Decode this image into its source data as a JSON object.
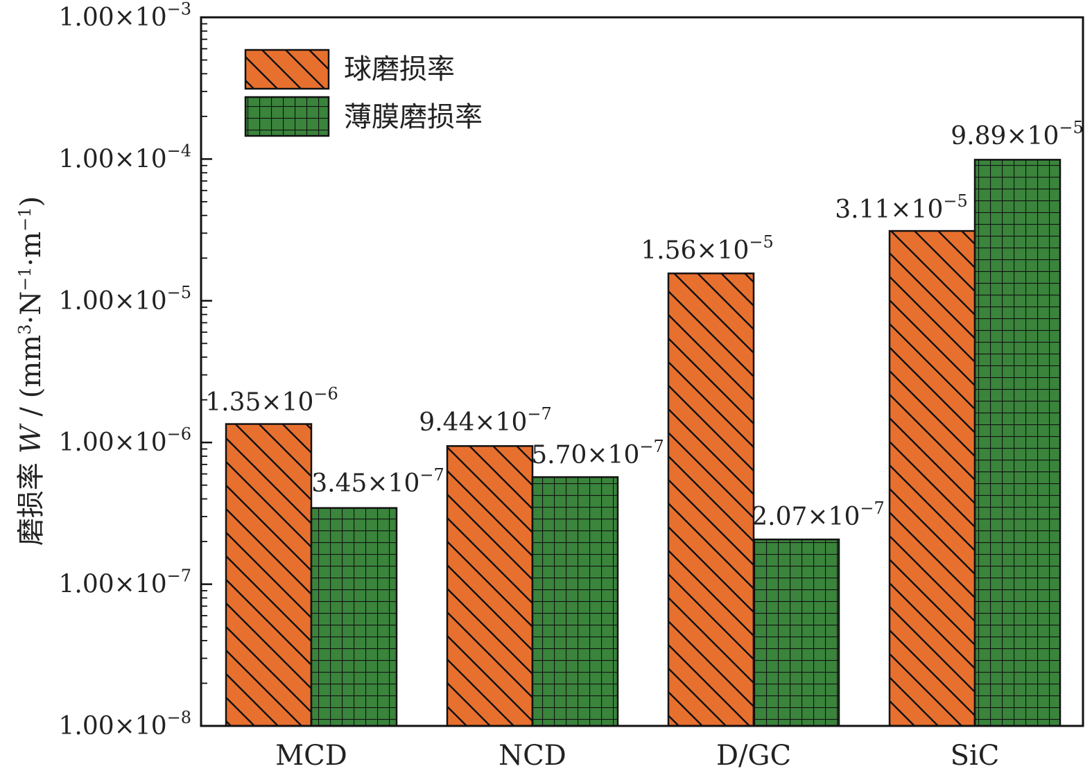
{
  "chart_data": {
    "type": "bar",
    "scale": "log",
    "ylim": [
      1e-08,
      0.001
    ],
    "ylabel": {
      "prefix": "磨损率 ",
      "var": "W",
      "units": " / (mm",
      "sup1": "3",
      "mid1": "·N",
      "sup2": "−1",
      "mid2": "·m",
      "sup3": "−1",
      "end": ")"
    },
    "yticks": [
      {
        "mant": "1.00×10",
        "exp": "−8",
        "value": 1e-08
      },
      {
        "mant": "1.00×10",
        "exp": "−7",
        "value": 1e-07
      },
      {
        "mant": "1.00×10",
        "exp": "−6",
        "value": 1e-06
      },
      {
        "mant": "1.00×10",
        "exp": "−5",
        "value": 1e-05
      },
      {
        "mant": "1.00×10",
        "exp": "−4",
        "value": 0.0001
      },
      {
        "mant": "1.00×10",
        "exp": "−3",
        "value": 0.001
      }
    ],
    "categories": [
      "MCD",
      "NCD",
      "D/GC",
      "SiC"
    ],
    "series": [
      {
        "name": "球磨损率",
        "color": "#e8702f",
        "pattern": "diagonal",
        "values": [
          1.35e-06,
          9.44e-07,
          1.56e-05,
          3.11e-05
        ],
        "labels": [
          {
            "mant": "1.35×10",
            "exp": "−6"
          },
          {
            "mant": "9.44×10",
            "exp": "−7"
          },
          {
            "mant": "1.56×10",
            "exp": "−5"
          },
          {
            "mant": "3.11×10",
            "exp": "−5"
          }
        ]
      },
      {
        "name": "薄膜磨损率",
        "color": "#3a843c",
        "pattern": "grid",
        "values": [
          3.45e-07,
          5.7e-07,
          2.07e-07,
          9.89e-05
        ],
        "labels": [
          {
            "mant": "3.45×10",
            "exp": "−7"
          },
          {
            "mant": "5.70×10",
            "exp": "−7"
          },
          {
            "mant": "2.07×10",
            "exp": "−7"
          },
          {
            "mant": "9.89×10",
            "exp": "−5"
          }
        ]
      }
    ],
    "legend": "top-left"
  }
}
